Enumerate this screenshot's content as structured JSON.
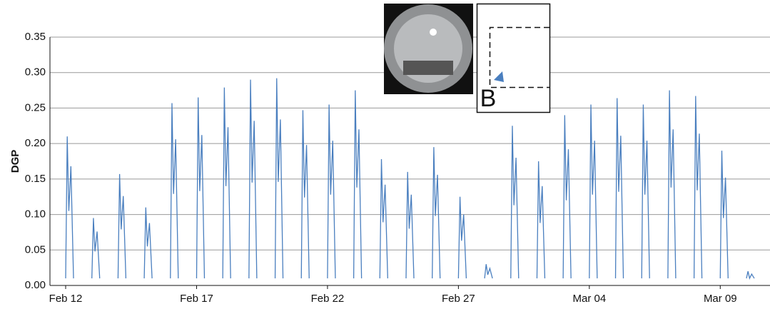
{
  "chart_data": {
    "type": "line",
    "y_label": "DGP",
    "color": "#4a7fbf",
    "grid": true,
    "annotations": [
      "B"
    ],
    "xlim": [
      -0.6,
      26.9
    ],
    "ylim": [
      0,
      0.35
    ],
    "xticks": [
      {
        "value": 0,
        "label": "Feb 12"
      },
      {
        "value": 5,
        "label": "Feb 17"
      },
      {
        "value": 10,
        "label": "Feb 22"
      },
      {
        "value": 15,
        "label": "Feb 27"
      },
      {
        "value": 20,
        "label": "Mar 04"
      },
      {
        "value": 25,
        "label": "Mar 09"
      }
    ],
    "yticks": [
      {
        "value": 0,
        "label": "0.00"
      },
      {
        "value": 0.05,
        "label": "0.05"
      },
      {
        "value": 0.1,
        "label": "0.10"
      },
      {
        "value": 0.15,
        "label": "0.15"
      },
      {
        "value": 0.2,
        "label": "0.20"
      },
      {
        "value": 0.25,
        "label": "0.25"
      },
      {
        "value": 0.3,
        "label": "0.30"
      },
      {
        "value": 0.35,
        "label": "0.35"
      }
    ],
    "x": [
      0,
      0.06,
      0.12,
      0.2,
      0.3,
      0.6,
      1,
      1.06,
      1.12,
      1.2,
      1.3,
      1.6,
      2,
      2.06,
      2.12,
      2.2,
      2.3,
      2.6,
      3,
      3.06,
      3.12,
      3.2,
      3.3,
      3.6,
      4,
      4.06,
      4.12,
      4.2,
      4.3,
      4.6,
      5,
      5.06,
      5.12,
      5.2,
      5.3,
      5.6,
      6,
      6.06,
      6.12,
      6.2,
      6.3,
      6.6,
      7,
      7.06,
      7.12,
      7.2,
      7.3,
      7.6,
      8,
      8.06,
      8.12,
      8.2,
      8.3,
      8.6,
      9,
      9.06,
      9.12,
      9.2,
      9.3,
      9.6,
      10,
      10.06,
      10.12,
      10.2,
      10.3,
      10.6,
      11,
      11.06,
      11.12,
      11.2,
      11.3,
      11.6,
      12,
      12.06,
      12.12,
      12.2,
      12.3,
      12.6,
      13,
      13.06,
      13.12,
      13.2,
      13.3,
      13.6,
      14,
      14.06,
      14.12,
      14.2,
      14.3,
      14.6,
      15,
      15.06,
      15.12,
      15.2,
      15.3,
      15.6,
      16,
      16.06,
      16.12,
      16.2,
      16.3,
      16.6,
      17,
      17.06,
      17.12,
      17.2,
      17.3,
      17.6,
      18,
      18.06,
      18.12,
      18.2,
      18.3,
      18.6,
      19,
      19.06,
      19.12,
      19.2,
      19.3,
      19.6,
      20,
      20.06,
      20.12,
      20.2,
      20.3,
      20.6,
      21,
      21.06,
      21.12,
      21.2,
      21.3,
      21.6,
      22,
      22.06,
      22.12,
      22.2,
      22.3,
      22.6,
      23,
      23.06,
      23.12,
      23.2,
      23.3,
      23.6,
      24,
      24.06,
      24.12,
      24.2,
      24.3,
      24.6,
      25,
      25.06,
      25.12,
      25.2,
      25.3,
      25.6,
      26,
      26.06,
      26.12,
      26.2,
      26.3
    ],
    "values": [
      0.01,
      0.21,
      0.105,
      0.168,
      0.01,
      null,
      0.01,
      0.095,
      0.048,
      0.076,
      0.01,
      null,
      0.01,
      0.157,
      0.079,
      0.126,
      0.01,
      null,
      0.01,
      0.11,
      0.055,
      0.088,
      0.01,
      null,
      0.01,
      0.257,
      0.129,
      0.206,
      0.01,
      null,
      0.01,
      0.265,
      0.133,
      0.212,
      0.01,
      null,
      0.01,
      0.279,
      0.14,
      0.223,
      0.01,
      null,
      0.01,
      0.29,
      0.145,
      0.232,
      0.01,
      null,
      0.01,
      0.292,
      0.146,
      0.234,
      0.01,
      null,
      0.01,
      0.247,
      0.124,
      0.198,
      0.01,
      null,
      0.01,
      0.255,
      0.128,
      0.204,
      0.01,
      null,
      0.01,
      0.275,
      0.138,
      0.22,
      0.01,
      null,
      0.01,
      0.178,
      0.089,
      0.142,
      0.01,
      null,
      0.01,
      0.16,
      0.08,
      0.128,
      0.01,
      null,
      0.01,
      0.195,
      0.098,
      0.156,
      0.01,
      null,
      0.01,
      0.125,
      0.063,
      0.1,
      0.01,
      null,
      0.01,
      0.03,
      0.015,
      0.024,
      0.01,
      null,
      0.01,
      0.225,
      0.113,
      0.18,
      0.01,
      null,
      0.01,
      0.175,
      0.088,
      0.14,
      0.01,
      null,
      0.01,
      0.24,
      0.12,
      0.192,
      0.01,
      null,
      0.01,
      0.255,
      0.128,
      0.204,
      0.01,
      null,
      0.01,
      0.264,
      0.132,
      0.211,
      0.01,
      null,
      0.01,
      0.255,
      0.128,
      0.204,
      0.01,
      null,
      0.01,
      0.275,
      0.138,
      0.22,
      0.01,
      null,
      0.01,
      0.267,
      0.134,
      0.214,
      0.01,
      null,
      0.01,
      0.19,
      0.095,
      0.152,
      0.01,
      null,
      0.01,
      0.02,
      0.01,
      0.016,
      0.01
    ]
  }
}
